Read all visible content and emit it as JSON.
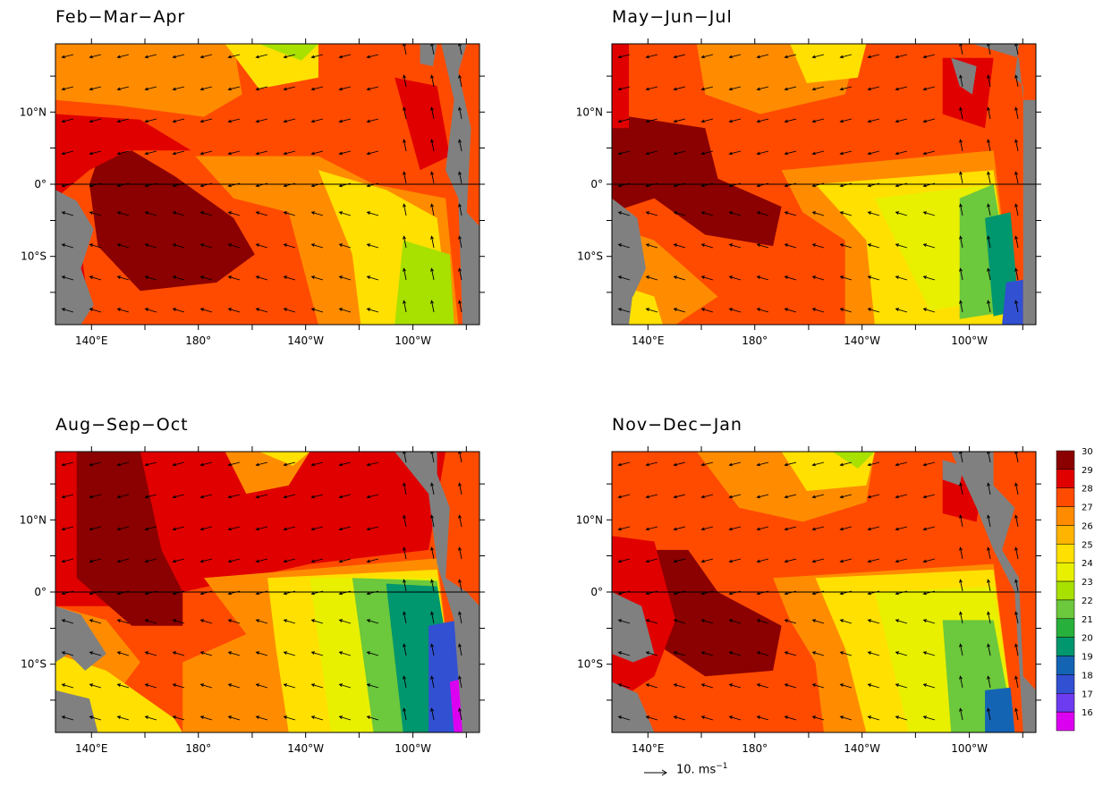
{
  "panels": [
    {
      "title": "Feb−Mar−Apr"
    },
    {
      "title": "May−Jun−Jul"
    },
    {
      "title": "Aug−Sep−Oct"
    },
    {
      "title": "Nov−Dec−Jan"
    }
  ],
  "lat_labels": [
    "10°N",
    "0°",
    "10°S"
  ],
  "lon_labels": [
    "140°E",
    "180°",
    "140°W",
    "100°W"
  ],
  "colorbar": {
    "ticks": [
      "30",
      "29",
      "28",
      "27",
      "26",
      "25",
      "24",
      "23",
      "22",
      "21",
      "20",
      "19",
      "18",
      "17",
      "16"
    ],
    "colors": [
      "#8b0000",
      "#e00000",
      "#ff4b00",
      "#ff8c00",
      "#ffb400",
      "#ffe000",
      "#e8f000",
      "#a8e000",
      "#6cc83c",
      "#28b03c",
      "#00966e",
      "#1464b4",
      "#3250d2",
      "#6e3cf0",
      "#dc00f0"
    ],
    "land_color": "#808080"
  },
  "reference_vector": {
    "label": "10. ms",
    "exponent": "−1"
  }
}
